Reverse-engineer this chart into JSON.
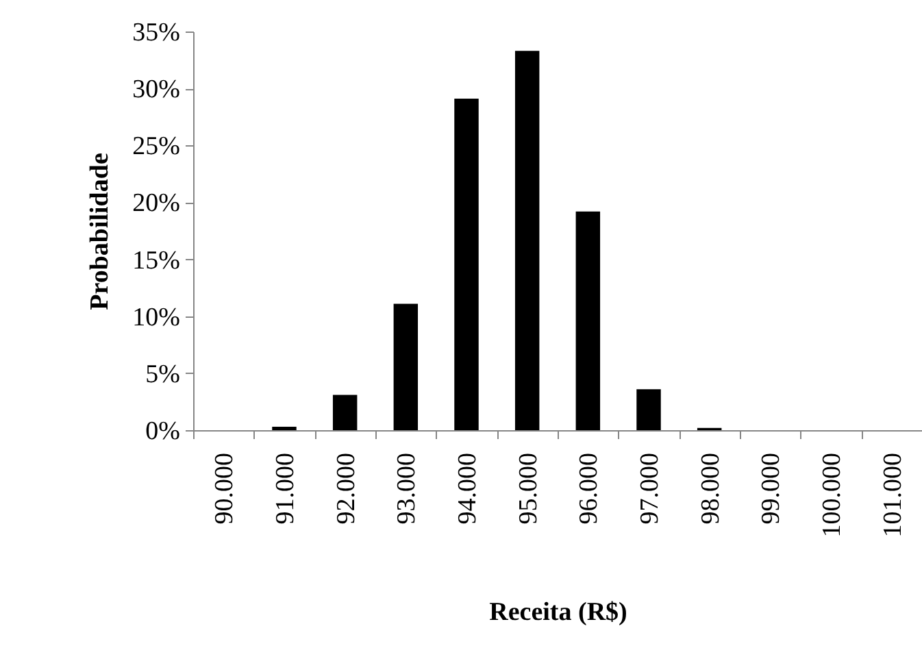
{
  "chart_data": {
    "type": "bar",
    "xlabel": "Receita (R$)",
    "ylabel": "Probabilidade",
    "categories": [
      "90.000",
      "91.000",
      "92.000",
      "93.000",
      "94.000",
      "95.000",
      "96.000",
      "97.000",
      "98.000",
      "99.000",
      "100.000",
      "101.000"
    ],
    "values": [
      0,
      0.3,
      3.1,
      11.1,
      29.1,
      33.3,
      19.2,
      3.6,
      0.2,
      0,
      0,
      0
    ],
    "color": "#000000",
    "ylim": [
      0,
      35
    ],
    "yticks": [
      {
        "value": 0,
        "label": "0%"
      },
      {
        "value": 5,
        "label": "5%"
      },
      {
        "value": 10,
        "label": "10%"
      },
      {
        "value": 15,
        "label": "15%"
      },
      {
        "value": 20,
        "label": "20%"
      },
      {
        "value": 25,
        "label": "25%"
      },
      {
        "value": 30,
        "label": "30%"
      },
      {
        "value": 35,
        "label": "35%"
      }
    ],
    "grid": false
  }
}
